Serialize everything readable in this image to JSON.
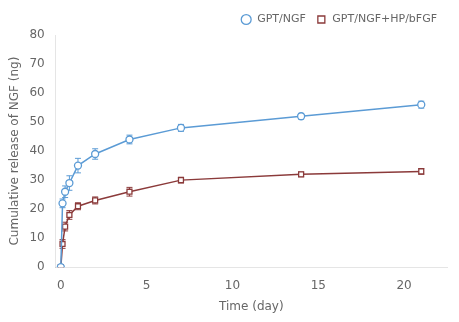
{
  "chart_data": {
    "type": "line",
    "xlabel": "Time (day)",
    "ylabel": "Cumulative release of NGF (ng)",
    "x": [
      0,
      0.1,
      0.25,
      0.5,
      1,
      2,
      4,
      7,
      14,
      21
    ],
    "series": [
      {
        "name": "GPT/NGF",
        "color": "#5b9bd5",
        "marker": "circle",
        "values": [
          0,
          22,
          26,
          29,
          35,
          39,
          44,
          48,
          52,
          56
        ],
        "error": [
          0,
          1.5,
          2.0,
          2.5,
          2.5,
          1.8,
          1.5,
          1.2,
          1.0,
          1.2
        ]
      },
      {
        "name": "GPT/NGF+HP/bFGF",
        "color": "#8b3a3a",
        "marker": "square",
        "values": [
          0,
          8,
          14,
          18,
          21,
          23,
          26,
          30,
          32,
          33
        ],
        "error": [
          0,
          1.5,
          1.5,
          1.5,
          1.2,
          1.2,
          1.5,
          1.0,
          0.8,
          1.0
        ]
      }
    ],
    "xlim": [
      -0.3,
      22.5
    ],
    "xticks": [
      0,
      5,
      10,
      15,
      20
    ],
    "ylim": [
      0,
      80
    ],
    "yticks": [
      0,
      10,
      20,
      30,
      40,
      50,
      60,
      70,
      80
    ],
    "grid": false,
    "legend": "upper right"
  }
}
